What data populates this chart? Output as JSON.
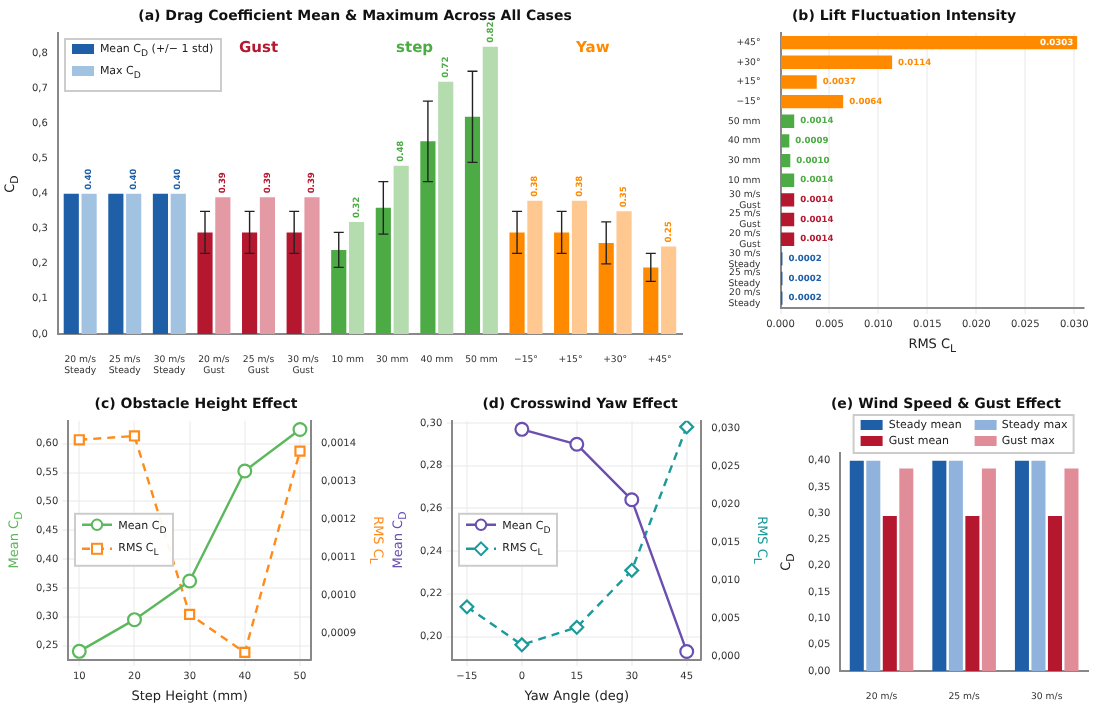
{
  "chart_data": [
    {
      "type": "bar",
      "title": "(a) Drag Coefficient Mean & Maximum Across All Cases",
      "ylabel": "C$_{D}$",
      "categories": [
        "20 m/s\nSteady",
        "25 m/s\nSteady",
        "30 m/s\nSteady",
        "20 m/s\nGust",
        "25 m/s\nGust",
        "30 m/s\nGust",
        "10 mm",
        "30 mm",
        "40 mm",
        "50 mm",
        "−15°",
        "+15°",
        "+30°",
        "+45°"
      ],
      "series": [
        {
          "name": "Mean C$_{D}$ (+/− 1 std)",
          "color": "#1f5fa8",
          "colors": [
            "#1f5fa8",
            "#1f5fa8",
            "#1f5fa8",
            "#b5172f",
            "#b5172f",
            "#b5172f",
            "#4dab45",
            "#4dab45",
            "#4dab45",
            "#4dab45",
            "#ff8a00",
            "#ff8a00",
            "#ff8a00",
            "#ff8a00"
          ],
          "values": [
            0.4,
            0.4,
            0.4,
            0.29,
            0.29,
            0.29,
            0.24,
            0.36,
            0.55,
            0.62,
            0.29,
            0.29,
            0.26,
            0.19
          ],
          "errors": [
            null,
            null,
            null,
            0.06,
            0.06,
            0.06,
            0.05,
            0.075,
            0.115,
            0.13,
            0.06,
            0.06,
            0.06,
            0.04
          ]
        },
        {
          "name": "Max C$_{D}$",
          "color": "#a2c2e2",
          "colors": [
            "#a2c2e2",
            "#a2c2e2",
            "#a2c2e2",
            "#e39aa5",
            "#e39aa5",
            "#e39aa5",
            "#b4dcae",
            "#b4dcae",
            "#b4dcae",
            "#b4dcae",
            "#ffc891",
            "#ffc891",
            "#ffc891",
            "#ffc891"
          ],
          "values": [
            0.4,
            0.4,
            0.4,
            0.39,
            0.39,
            0.39,
            0.32,
            0.48,
            0.72,
            0.82,
            0.38,
            0.38,
            0.35,
            0.25
          ],
          "value_labels": [
            "0.40",
            "0.40",
            "0.40",
            "0.39",
            "0.39",
            "0.39",
            "0.32",
            "0.48",
            "0.72",
            "0.82",
            "0.38",
            "0.38",
            "0.35",
            "0.25"
          ]
        }
      ],
      "ylim": [
        0,
        0.86
      ],
      "yticks": [
        {
          "value": 0,
          "label": "0,0"
        },
        {
          "value": 0.1,
          "label": "0,1"
        },
        {
          "value": 0.2,
          "label": "0,2"
        },
        {
          "value": 0.3,
          "label": "0,3"
        },
        {
          "value": 0.4,
          "label": "0,4"
        },
        {
          "value": 0.5,
          "label": "0,5"
        },
        {
          "value": 0.6,
          "label": "0,6"
        },
        {
          "value": 0.7,
          "label": "0,7"
        },
        {
          "value": 0.8,
          "label": "0,8"
        }
      ],
      "legend": "top left",
      "annotations": [
        "Gust",
        "step",
        "Yaw"
      ]
    },
    {
      "type": "bar",
      "orientation": "horizontal",
      "title": "(b) Lift Fluctuation Intensity",
      "xlabel": "RMS C$_{L}$",
      "categories": [
        "+45°",
        "+30°",
        "+15°",
        "−15°",
        "50 mm",
        "40 mm",
        "30 mm",
        "10 mm",
        "30 m/s\nGust",
        "25 m/s\nGust",
        "20 m/s\nGust",
        "30 m/s\nSteady",
        "25 m/s\nSteady",
        "20 m/s\nSteady"
      ],
      "values": [
        0.0303,
        0.0114,
        0.0037,
        0.0064,
        0.0014,
        0.0009,
        0.001,
        0.0014,
        0.0014,
        0.0014,
        0.0014,
        0.0002,
        0.0002,
        0.0002
      ],
      "colors": [
        "#ff8a00",
        "#ff8a00",
        "#ff8a00",
        "#ff8a00",
        "#4dab45",
        "#4dab45",
        "#4dab45",
        "#4dab45",
        "#b5172f",
        "#b5172f",
        "#b5172f",
        "#1f5fa8",
        "#1f5fa8",
        "#1f5fa8"
      ],
      "value_labels": [
        "0.0303",
        "0.0114",
        "0.0037",
        "0.0064",
        "0.0014",
        "0.0009",
        "0.0010",
        "0.0014",
        "0.0014",
        "0.0014",
        "0.0014",
        "0.0002",
        "0.0002",
        "0.0002"
      ],
      "xlim": [
        0,
        0.031
      ],
      "xticks": [
        {
          "value": 0,
          "label": "0.000"
        },
        {
          "value": 0.005,
          "label": "0.005"
        },
        {
          "value": 0.01,
          "label": "0.010"
        },
        {
          "value": 0.015,
          "label": "0.015"
        },
        {
          "value": 0.02,
          "label": "0.020"
        },
        {
          "value": 0.025,
          "label": "0.025"
        },
        {
          "value": 0.03,
          "label": "0.030"
        }
      ],
      "grid": "x"
    },
    {
      "type": "line",
      "title": "(c) Obstacle Height Effect",
      "xlabel": "Step Height (mm)",
      "ylabel": "Mean C$_{D}$",
      "y2label": "RMS C$_{L}$",
      "x": [
        10,
        20,
        30,
        40,
        50
      ],
      "series": [
        {
          "name": "Mean C$_{D}$",
          "color": "#5cb85c",
          "values": [
            0.24,
            0.295,
            0.362,
            0.553,
            0.625
          ],
          "marker": "circle",
          "line_style": "solid"
        },
        {
          "name": "RMS C$_{L}$",
          "color": "#ff8c1a",
          "values": [
            0.00141,
            0.00142,
            0.00095,
            0.00085,
            0.00138
          ],
          "axis": "y2",
          "marker": "square",
          "line_style": "dashed"
        }
      ],
      "xlim": [
        8,
        52
      ],
      "xticks": [
        10,
        20,
        30,
        40,
        50
      ],
      "ylim": [
        0.225,
        0.64
      ],
      "yticks": [
        {
          "value": 0.25,
          "label": "0,25"
        },
        {
          "value": 0.3,
          "label": "0,30"
        },
        {
          "value": 0.35,
          "label": "0,35"
        },
        {
          "value": 0.4,
          "label": "0,40"
        },
        {
          "value": 0.45,
          "label": "0,45"
        },
        {
          "value": 0.5,
          "label": "0,50"
        },
        {
          "value": 0.55,
          "label": "0,55"
        },
        {
          "value": 0.6,
          "label": "0,60"
        }
      ],
      "y2lim": [
        0.00083,
        0.00146
      ],
      "y2ticks": [
        {
          "value": 0.0009,
          "label": "0,0009"
        },
        {
          "value": 0.001,
          "label": "0,0010"
        },
        {
          "value": 0.0011,
          "label": "0,0011"
        },
        {
          "value": 0.0012,
          "label": "0,0012"
        },
        {
          "value": 0.0013,
          "label": "0,0013"
        },
        {
          "value": 0.0014,
          "label": "0,0014"
        }
      ],
      "legend": "center left",
      "grid": true
    },
    {
      "type": "line",
      "title": "(d) Crosswind Yaw Effect",
      "xlabel": "Yaw Angle (deg)",
      "ylabel": "Mean C$_{D}$",
      "y2label": "RMS C$_{L}$",
      "x": [
        -15,
        0,
        15,
        30,
        45
      ],
      "series": [
        {
          "name": "Mean C$_{D}$",
          "color": "#6a4fb0",
          "values": [
            null,
            0.297,
            0.29,
            0.264,
            0.193
          ],
          "marker": "circle",
          "line_style": "solid"
        },
        {
          "name": "RMS C$_{L}$",
          "color": "#1a9a9a",
          "values": [
            0.0065,
            0.0015,
            0.0038,
            0.0113,
            0.0302
          ],
          "axis": "y2",
          "marker": "diamond",
          "line_style": "dashed"
        }
      ],
      "xlim": [
        -19,
        49
      ],
      "xticks": [
        {
          "value": -15,
          "label": "−15"
        },
        0,
        15,
        30,
        45
      ],
      "ylim": [
        0.189,
        0.301
      ],
      "yticks": [
        {
          "value": 0.2,
          "label": "0,20"
        },
        {
          "value": 0.22,
          "label": "0,22"
        },
        {
          "value": 0.24,
          "label": "0,24"
        },
        {
          "value": 0.26,
          "label": "0,26"
        },
        {
          "value": 0.28,
          "label": "0,28"
        },
        {
          "value": 0.3,
          "label": "0,30"
        }
      ],
      "y2lim": [
        -0.0005,
        0.031
      ],
      "y2ticks": [
        {
          "value": 0,
          "label": "0,000"
        },
        {
          "value": 0.005,
          "label": "0,005"
        },
        {
          "value": 0.01,
          "label": "0,010"
        },
        {
          "value": 0.015,
          "label": "0,015"
        },
        {
          "value": 0.02,
          "label": "0,020"
        },
        {
          "value": 0.025,
          "label": "0,025"
        },
        {
          "value": 0.03,
          "label": "0,030"
        }
      ],
      "legend": "center left",
      "grid": true
    },
    {
      "type": "bar",
      "title": "(e) Wind Speed & Gust Effect",
      "ylabel": "C$_{D}$",
      "categories": [
        "20 m/s",
        "25 m/s",
        "30 m/s"
      ],
      "series": [
        {
          "name": "Steady mean",
          "color": "#1f5fa8",
          "values": [
            0.4,
            0.4,
            0.4
          ]
        },
        {
          "name": "Steady max",
          "color": "#8fb3dd",
          "values": [
            0.4,
            0.4,
            0.4
          ]
        },
        {
          "name": "Gust mean",
          "color": "#b5172f",
          "values": [
            0.295,
            0.295,
            0.295
          ]
        },
        {
          "name": "Gust max",
          "color": "#e08d99",
          "values": [
            0.385,
            0.385,
            0.385
          ]
        }
      ],
      "ylim": [
        0,
        0.415
      ],
      "yticks": [
        {
          "value": 0,
          "label": "0,00"
        },
        {
          "value": 0.05,
          "label": "0,05"
        },
        {
          "value": 0.1,
          "label": "0,10"
        },
        {
          "value": 0.15,
          "label": "0,15"
        },
        {
          "value": 0.2,
          "label": "0,20"
        },
        {
          "value": 0.25,
          "label": "0,25"
        },
        {
          "value": 0.3,
          "label": "0,30"
        },
        {
          "value": 0.35,
          "label": "0,35"
        },
        {
          "value": 0.4,
          "label": "0,40"
        }
      ],
      "legend": "top"
    }
  ]
}
